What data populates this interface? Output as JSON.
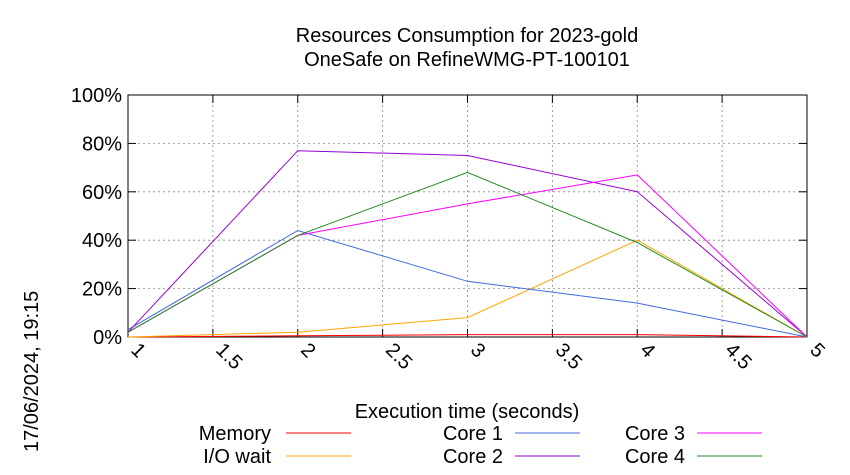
{
  "chart_data": {
    "type": "line",
    "title": "Resources Consumption for 2023-gold",
    "subtitle": "OneSafe on RefineWMG-PT-100101",
    "xlabel": "Execution time (seconds)",
    "ylabel": "",
    "side_label": "17/06/2024, 19:15",
    "xlim": [
      1,
      5
    ],
    "ylim": [
      0,
      100
    ],
    "x_ticks": [
      "1",
      "1.5",
      "2",
      "2.5",
      "3",
      "3.5",
      "4",
      "4.5",
      "5"
    ],
    "y_ticks": [
      "0%",
      "20%",
      "40%",
      "60%",
      "80%",
      "100%"
    ],
    "grid": true,
    "legend_position": "bottom",
    "x": [
      1,
      2,
      3,
      4,
      5
    ],
    "series": [
      {
        "name": "Memory",
        "color": "#ff0000",
        "values": [
          0,
          0.5,
          1,
          1,
          0
        ]
      },
      {
        "name": "I/O wait",
        "color": "#ffa500",
        "values": [
          0,
          2,
          8,
          40,
          0
        ]
      },
      {
        "name": "Core 1",
        "color": "#4169e1",
        "values": [
          3,
          44,
          23,
          14,
          0
        ]
      },
      {
        "name": "Core 2",
        "color": "#9400d3",
        "values": [
          2,
          77,
          75,
          60,
          0
        ]
      },
      {
        "name": "Core 3",
        "color": "#ff00ff",
        "values": [
          2,
          42,
          55,
          67,
          0
        ]
      },
      {
        "name": "Core 4",
        "color": "#228b22",
        "values": [
          2,
          42,
          68,
          39,
          0
        ]
      }
    ]
  }
}
